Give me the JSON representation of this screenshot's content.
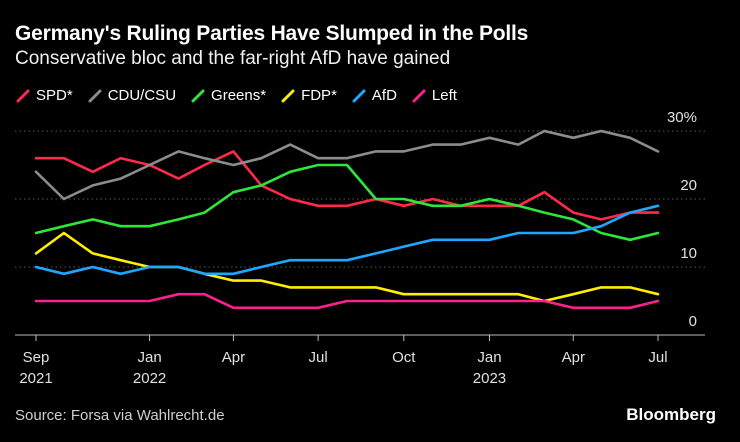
{
  "header": {
    "title": "Germany's Ruling Parties Have Slumped in the Polls",
    "subtitle": "Conservative bloc and the far-right AfD have gained"
  },
  "footer": {
    "source": "Source: Forsa via Wahlrecht.de",
    "logo": "Bloomberg"
  },
  "chart_data": {
    "type": "line",
    "title": "Germany's Ruling Parties Have Slumped in the Polls",
    "subtitle": "Conservative bloc and the far-right AfD have gained",
    "y_unit": "%",
    "ylim": [
      0,
      30
    ],
    "y_ticks": [
      {
        "v": 0,
        "label": "0"
      },
      {
        "v": 10,
        "label": "10"
      },
      {
        "v": 20,
        "label": "20"
      },
      {
        "v": 30,
        "label": "30%"
      }
    ],
    "x_ticks": [
      {
        "date": "2021-09",
        "label": "Sep",
        "year": "2021"
      },
      {
        "date": "2022-01",
        "label": "Jan",
        "year": "2022"
      },
      {
        "date": "2022-04",
        "label": "Apr",
        "year": ""
      },
      {
        "date": "2022-07",
        "label": "Jul",
        "year": ""
      },
      {
        "date": "2022-10",
        "label": "Oct",
        "year": ""
      },
      {
        "date": "2023-01",
        "label": "Jan",
        "year": "2023"
      },
      {
        "date": "2023-04",
        "label": "Apr",
        "year": ""
      },
      {
        "date": "2023-07",
        "label": "Jul",
        "year": ""
      }
    ],
    "grid": true,
    "legend_position": "top-left",
    "x": [
      "2021-09-01",
      "2021-10-01",
      "2021-11-01",
      "2021-12-01",
      "2022-01-01",
      "2022-02-01",
      "2022-03-01",
      "2022-04-01",
      "2022-05-01",
      "2022-06-01",
      "2022-07-01",
      "2022-08-01",
      "2022-09-01",
      "2022-10-01",
      "2022-11-01",
      "2022-12-01",
      "2023-01-01",
      "2023-02-01",
      "2023-03-01",
      "2023-04-01",
      "2023-05-01",
      "2023-06-01",
      "2023-07-01"
    ],
    "series": [
      {
        "name": "SPD*",
        "color": "#ff2a4a",
        "values": [
          26,
          26,
          24,
          26,
          25,
          23,
          25,
          27,
          22,
          20,
          19,
          19,
          20,
          19,
          20,
          19,
          19,
          19,
          21,
          18,
          17,
          18,
          18
        ]
      },
      {
        "name": "CDU/CSU",
        "color": "#8c8c8c",
        "values": [
          24,
          20,
          22,
          23,
          25,
          27,
          26,
          25,
          26,
          28,
          26,
          26,
          27,
          27,
          28,
          28,
          29,
          28,
          30,
          29,
          30,
          29,
          27
        ]
      },
      {
        "name": "Greens*",
        "color": "#2ee63b",
        "values": [
          15,
          16,
          17,
          16,
          16,
          17,
          18,
          21,
          22,
          24,
          25,
          25,
          20,
          20,
          19,
          19,
          20,
          19,
          18,
          17,
          15,
          14,
          15
        ]
      },
      {
        "name": "FDP*",
        "color": "#ffee00",
        "values": [
          12,
          15,
          12,
          11,
          10,
          10,
          9,
          8,
          8,
          7,
          7,
          7,
          7,
          6,
          6,
          6,
          6,
          6,
          5,
          6,
          7,
          7,
          6
        ]
      },
      {
        "name": "AfD",
        "color": "#1ea7ff",
        "values": [
          10,
          9,
          10,
          9,
          10,
          10,
          9,
          9,
          10,
          11,
          11,
          11,
          12,
          13,
          14,
          14,
          14,
          15,
          15,
          15,
          16,
          18,
          19
        ]
      },
      {
        "name": "Left",
        "color": "#ff1f8e",
        "values": [
          5,
          5,
          5,
          5,
          5,
          6,
          6,
          4,
          4,
          4,
          4,
          5,
          5,
          5,
          5,
          5,
          5,
          5,
          5,
          4,
          4,
          4,
          5
        ]
      }
    ]
  }
}
